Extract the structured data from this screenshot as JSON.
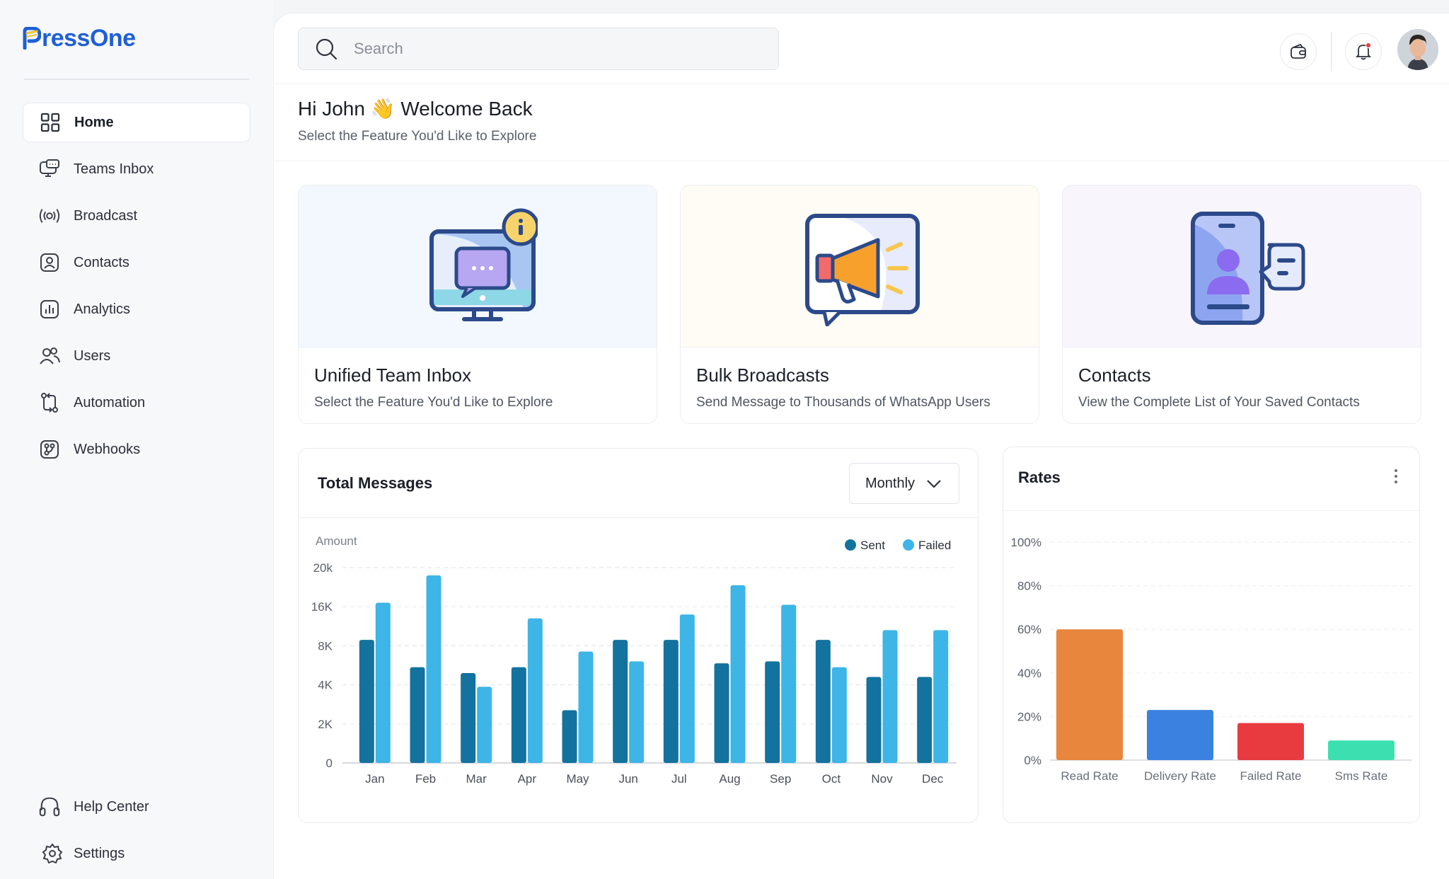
{
  "brand": {
    "name": "ressOne",
    "logo_letter": "P"
  },
  "sidebar": {
    "items": [
      {
        "label": "Home",
        "icon": "grid-icon",
        "active": true
      },
      {
        "label": "Teams Inbox",
        "icon": "chat-monitor-icon"
      },
      {
        "label": "Broadcast",
        "icon": "broadcast-icon"
      },
      {
        "label": "Contacts",
        "icon": "contact-card-icon"
      },
      {
        "label": "Analytics",
        "icon": "analytics-icon"
      },
      {
        "label": "Users",
        "icon": "users-icon"
      },
      {
        "label": "Automation",
        "icon": "automation-icon"
      },
      {
        "label": "Webhooks",
        "icon": "webhook-icon"
      }
    ],
    "bottom": [
      {
        "label": "Help Center",
        "icon": "headset-icon"
      },
      {
        "label": "Settings",
        "icon": "gear-icon"
      }
    ]
  },
  "topbar": {
    "search_placeholder": "Search"
  },
  "welcome": {
    "title": "Hi John 👋 Welcome Back",
    "subtitle": "Select the Feature You'd Like to Explore"
  },
  "cards": [
    {
      "title": "Unified Team Inbox",
      "description": "Select the Feature You'd Like to Explore",
      "icon": "monitor-chat-illustration"
    },
    {
      "title": "Bulk Broadcasts",
      "description": "Send Message to Thousands of WhatsApp Users",
      "icon": "megaphone-illustration"
    },
    {
      "title": "Contacts",
      "description": "View the Complete List of Your Saved Contacts",
      "icon": "phone-contact-illustration"
    }
  ],
  "messages_panel": {
    "title": "Total Messages",
    "period": "Monthly"
  },
  "rates_panel": {
    "title": "Rates"
  },
  "colors": {
    "sent": "#13729e",
    "failed": "#3db5e6",
    "read_rate": "#e8863d",
    "delivery_rate": "#3b82e0",
    "failed_rate": "#e83b3f",
    "sms_rate": "#3ce0b0",
    "brand": "#1f5fd6"
  },
  "chart_data": [
    {
      "type": "bar",
      "title": "Total Messages",
      "ylabel": "Amount",
      "categories": [
        "Jan",
        "Feb",
        "Mar",
        "Apr",
        "May",
        "Jun",
        "Jul",
        "Aug",
        "Sep",
        "Oct",
        "Nov",
        "Dec"
      ],
      "yticks": [
        "0",
        "2K",
        "4K",
        "8K",
        "16K",
        "20k"
      ],
      "legend": "top-right",
      "grid": true,
      "series": [
        {
          "name": "Sent",
          "values": [
            3.15,
            2.45,
            2.3,
            2.45,
            1.35,
            3.15,
            3.15,
            2.55,
            2.6,
            3.15,
            2.2,
            2.2
          ]
        },
        {
          "name": "Failed",
          "values": [
            4.1,
            4.8,
            1.95,
            3.7,
            2.85,
            2.6,
            3.8,
            4.55,
            4.05,
            2.45,
            3.4,
            3.4
          ]
        }
      ],
      "value_scale_note": "values in tick-index units"
    },
    {
      "type": "bar",
      "title": "Rates",
      "categories": [
        "Read Rate",
        "Delivery Rate",
        "Failed Rate",
        "Sms Rate"
      ],
      "yticks": [
        "0%",
        "20%",
        "40%",
        "60%",
        "80%",
        "100%"
      ],
      "ylim": [
        0,
        100
      ],
      "grid": true,
      "values": [
        60,
        23,
        17,
        9
      ]
    }
  ]
}
